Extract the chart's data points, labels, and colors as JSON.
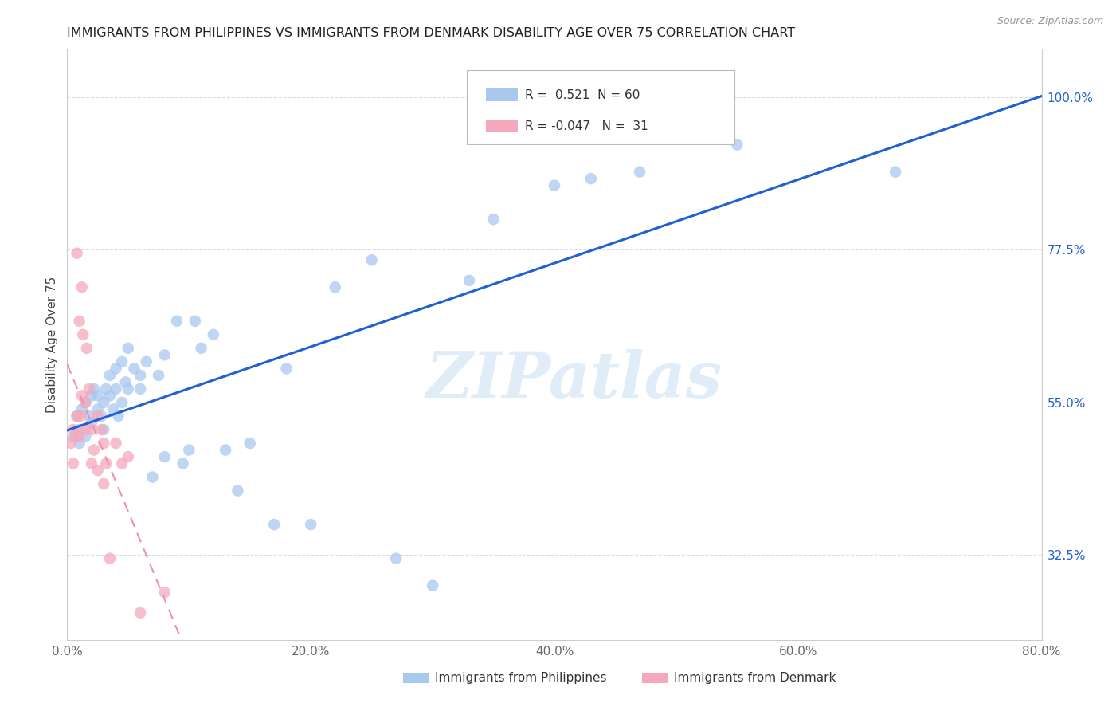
{
  "title": "IMMIGRANTS FROM PHILIPPINES VS IMMIGRANTS FROM DENMARK DISABILITY AGE OVER 75 CORRELATION CHART",
  "source": "Source: ZipAtlas.com",
  "legend_label1": "Immigrants from Philippines",
  "legend_label2": "Immigrants from Denmark",
  "ylabel": "Disability Age Over 75",
  "watermark": "ZIPatlas",
  "legend1_r": "0.521",
  "legend1_n": "60",
  "legend2_r": "-0.047",
  "legend2_n": "31",
  "xlim": [
    0.0,
    80.0
  ],
  "ylim": [
    20.0,
    107.0
  ],
  "right_yticks": [
    32.5,
    55.0,
    77.5,
    100.0
  ],
  "xtick_vals": [
    0,
    20,
    40,
    60,
    80
  ],
  "philippines_color": "#A8C8F0",
  "denmark_color": "#F5A8BB",
  "trend_philippines_color": "#2060D0",
  "trend_denmark_color": "#F090A8",
  "philippines_x": [
    0.5,
    0.8,
    1.0,
    1.0,
    1.2,
    1.5,
    1.5,
    1.8,
    2.0,
    2.0,
    2.2,
    2.5,
    2.5,
    2.8,
    3.0,
    3.0,
    3.2,
    3.5,
    3.5,
    3.8,
    4.0,
    4.0,
    4.2,
    4.5,
    4.5,
    4.8,
    5.0,
    5.0,
    5.5,
    6.0,
    6.0,
    6.5,
    7.0,
    7.5,
    8.0,
    8.0,
    9.0,
    9.5,
    10.0,
    10.5,
    11.0,
    12.0,
    13.0,
    14.0,
    15.0,
    17.0,
    18.0,
    20.0,
    22.0,
    25.0,
    27.0,
    30.0,
    33.0,
    35.0,
    40.0,
    43.0,
    47.0,
    50.0,
    55.0,
    68.0
  ],
  "philippines_y": [
    50.0,
    53.0,
    51.0,
    49.0,
    54.0,
    55.0,
    50.0,
    53.0,
    56.0,
    52.0,
    57.0,
    56.0,
    54.0,
    53.0,
    55.0,
    51.0,
    57.0,
    59.0,
    56.0,
    54.0,
    60.0,
    57.0,
    53.0,
    61.0,
    55.0,
    58.0,
    63.0,
    57.0,
    60.0,
    59.0,
    57.0,
    61.0,
    44.0,
    59.0,
    62.0,
    47.0,
    67.0,
    46.0,
    48.0,
    67.0,
    63.0,
    65.0,
    48.0,
    42.0,
    49.0,
    37.0,
    60.0,
    37.0,
    72.0,
    76.0,
    32.0,
    28.0,
    73.0,
    82.0,
    87.0,
    88.0,
    89.0,
    101.0,
    93.0,
    89.0
  ],
  "denmark_x": [
    0.3,
    0.5,
    0.5,
    0.7,
    0.8,
    0.8,
    1.0,
    1.0,
    1.1,
    1.2,
    1.2,
    1.3,
    1.5,
    1.5,
    1.6,
    1.8,
    2.0,
    2.0,
    2.2,
    2.5,
    2.5,
    2.8,
    3.0,
    3.0,
    3.2,
    3.5,
    4.0,
    4.5,
    5.0,
    6.0,
    8.0
  ],
  "denmark_y": [
    49.0,
    51.0,
    46.0,
    50.0,
    77.0,
    53.0,
    67.0,
    50.0,
    53.0,
    72.0,
    56.0,
    65.0,
    55.0,
    51.0,
    63.0,
    57.0,
    51.0,
    46.0,
    48.0,
    53.0,
    45.0,
    51.0,
    49.0,
    43.0,
    46.0,
    32.0,
    49.0,
    46.0,
    47.0,
    24.0,
    27.0
  ],
  "background_color": "#FFFFFF",
  "grid_color": "#DDDDDD"
}
